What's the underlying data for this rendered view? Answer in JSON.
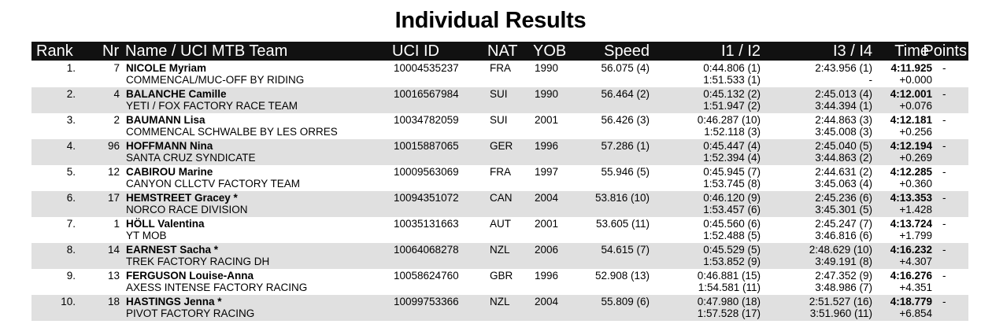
{
  "title": "Individual Results",
  "headers": {
    "rank": "Rank",
    "nr": "Nr",
    "name": "Name / UCI MTB Team",
    "uci_id": "UCI ID",
    "nat": "NAT",
    "yob": "YOB",
    "speed": "Speed",
    "i12": "I1 / I2",
    "i34": "I3 / I4",
    "time": "Time",
    "points": "Points"
  },
  "rows": [
    {
      "rank": "1.",
      "nr": "7",
      "name": "NICOLE Myriam",
      "team": "COMMENCAL/MUC-OFF BY RIDING",
      "uci_id": "10004535237",
      "nat": "FRA",
      "yob": "1990",
      "speed": "56.075 (4)",
      "i1": "0:44.806 (1)",
      "i2": "1:51.533 (1)",
      "i3": "2:43.956 (1)",
      "i4": "-",
      "time": "4:11.925",
      "gap": "+0.000",
      "points": "-"
    },
    {
      "rank": "2.",
      "nr": "4",
      "name": "BALANCHE Camille",
      "team": "YETI / FOX FACTORY RACE TEAM",
      "uci_id": "10016567984",
      "nat": "SUI",
      "yob": "1990",
      "speed": "56.464 (2)",
      "i1": "0:45.132 (2)",
      "i2": "1:51.947 (2)",
      "i3": "2:45.013 (4)",
      "i4": "3:44.394 (1)",
      "time": "4:12.001",
      "gap": "+0.076",
      "points": "-"
    },
    {
      "rank": "3.",
      "nr": "2",
      "name": "BAUMANN Lisa",
      "team": "COMMENCAL SCHWALBE BY LES ORRES",
      "uci_id": "10034782059",
      "nat": "SUI",
      "yob": "2001",
      "speed": "56.426 (3)",
      "i1": "0:46.287 (10)",
      "i2": "1:52.118 (3)",
      "i3": "2:44.863 (3)",
      "i4": "3:45.008 (3)",
      "time": "4:12.181",
      "gap": "+0.256",
      "points": "-"
    },
    {
      "rank": "4.",
      "nr": "96",
      "name": "HOFFMANN Nina",
      "team": "SANTA CRUZ SYNDICATE",
      "uci_id": "10015887065",
      "nat": "GER",
      "yob": "1996",
      "speed": "57.286 (1)",
      "i1": "0:45.447 (4)",
      "i2": "1:52.394 (4)",
      "i3": "2:45.040 (5)",
      "i4": "3:44.863 (2)",
      "time": "4:12.194",
      "gap": "+0.269",
      "points": "-"
    },
    {
      "rank": "5.",
      "nr": "12",
      "name": "CABIROU Marine",
      "team": "CANYON CLLCTV FACTORY TEAM",
      "uci_id": "10009563069",
      "nat": "FRA",
      "yob": "1997",
      "speed": "55.946 (5)",
      "i1": "0:45.945 (7)",
      "i2": "1:53.745 (8)",
      "i3": "2:44.631 (2)",
      "i4": "3:45.063 (4)",
      "time": "4:12.285",
      "gap": "+0.360",
      "points": "-"
    },
    {
      "rank": "6.",
      "nr": "17",
      "name": "HEMSTREET Gracey *",
      "team": "NORCO RACE DIVISION",
      "uci_id": "10094351072",
      "nat": "CAN",
      "yob": "2004",
      "speed": "53.816 (10)",
      "i1": "0:46.120 (9)",
      "i2": "1:53.457 (6)",
      "i3": "2:45.236 (6)",
      "i4": "3:45.301 (5)",
      "time": "4:13.353",
      "gap": "+1.428",
      "points": "-"
    },
    {
      "rank": "7.",
      "nr": "1",
      "name": "HÖLL Valentina",
      "team": "YT MOB",
      "uci_id": "10035131663",
      "nat": "AUT",
      "yob": "2001",
      "speed": "53.605 (11)",
      "i1": "0:45.560 (6)",
      "i2": "1:52.488 (5)",
      "i3": "2:45.247 (7)",
      "i4": "3:46.816 (6)",
      "time": "4:13.724",
      "gap": "+1.799",
      "points": "-"
    },
    {
      "rank": "8.",
      "nr": "14",
      "name": "EARNEST Sacha *",
      "team": "TREK FACTORY RACING DH",
      "uci_id": "10064068278",
      "nat": "NZL",
      "yob": "2006",
      "speed": "54.615 (7)",
      "i1": "0:45.529 (5)",
      "i2": "1:53.852 (9)",
      "i3": "2:48.629 (10)",
      "i4": "3:49.191 (8)",
      "time": "4:16.232",
      "gap": "+4.307",
      "points": "-"
    },
    {
      "rank": "9.",
      "nr": "13",
      "name": "FERGUSON Louise-Anna",
      "team": "AXESS INTENSE FACTORY RACING",
      "uci_id": "10058624760",
      "nat": "GBR",
      "yob": "1996",
      "speed": "52.908 (13)",
      "i1": "0:46.881 (15)",
      "i2": "1:54.581 (11)",
      "i3": "2:47.352 (9)",
      "i4": "3:48.986 (7)",
      "time": "4:16.276",
      "gap": "+4.351",
      "points": "-"
    },
    {
      "rank": "10.",
      "nr": "18",
      "name": "HASTINGS Jenna *",
      "team": "PIVOT FACTORY RACING",
      "uci_id": "10099753366",
      "nat": "NZL",
      "yob": "2004",
      "speed": "55.809 (6)",
      "i1": "0:47.980 (18)",
      "i2": "1:57.528 (17)",
      "i3": "2:51.527 (16)",
      "i4": "3:51.960 (11)",
      "time": "4:18.779",
      "gap": "+6.854",
      "points": "-"
    }
  ]
}
